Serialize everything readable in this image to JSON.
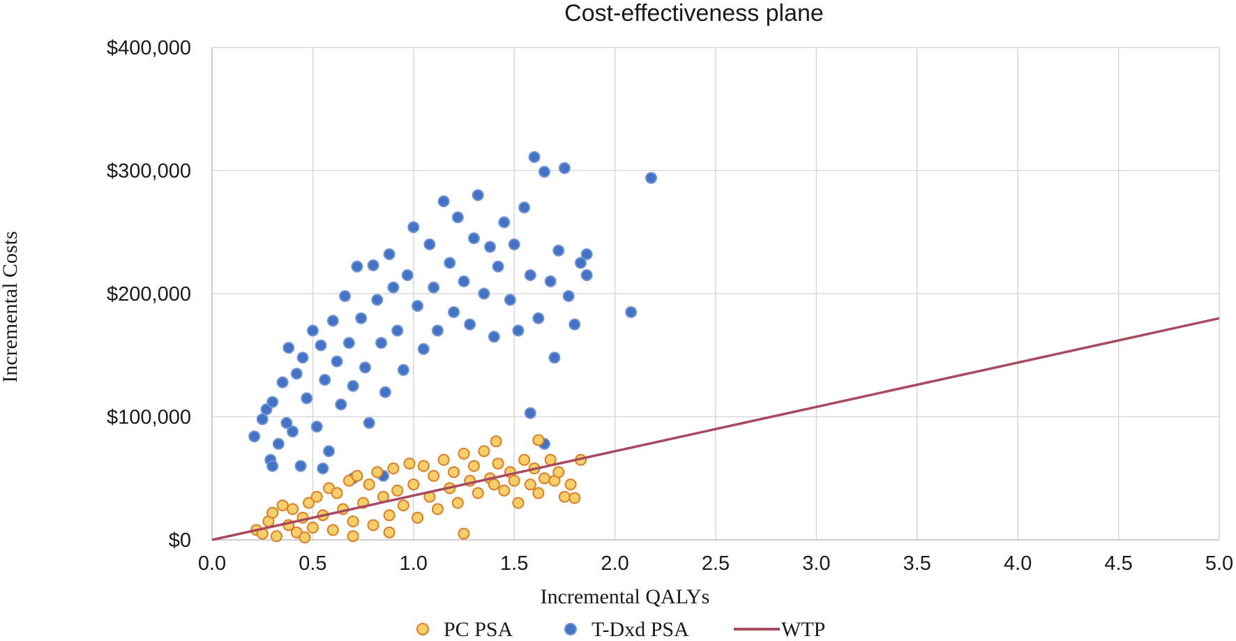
{
  "chart_data": {
    "type": "scatter",
    "title": "Cost-effectiveness plane",
    "xlabel": "Incremental QALYs",
    "ylabel": "Incremental Costs",
    "xlim": [
      0,
      5
    ],
    "ylim": [
      0,
      400000
    ],
    "x_ticks": [
      "0.0",
      "0.5",
      "1.0",
      "1.5",
      "2.0",
      "2.5",
      "3.0",
      "3.5",
      "4.0",
      "4.5",
      "5.0"
    ],
    "y_ticks": [
      "$0",
      "$100,000",
      "$200,000",
      "$300,000",
      "$400,000"
    ],
    "grid": true,
    "legend_position": "bottom-center",
    "series": [
      {
        "name": "PC PSA",
        "kind": "scatter",
        "color": "#f5cf6a",
        "edge_color": "#e07c24",
        "points": [
          [
            0.22,
            8000
          ],
          [
            0.25,
            5000
          ],
          [
            0.28,
            15000
          ],
          [
            0.3,
            22000
          ],
          [
            0.32,
            3000
          ],
          [
            0.35,
            28000
          ],
          [
            0.38,
            12000
          ],
          [
            0.4,
            25000
          ],
          [
            0.42,
            6000
          ],
          [
            0.45,
            18000
          ],
          [
            0.48,
            30000
          ],
          [
            0.5,
            10000
          ],
          [
            0.52,
            35000
          ],
          [
            0.55,
            20000
          ],
          [
            0.58,
            42000
          ],
          [
            0.6,
            8000
          ],
          [
            0.62,
            38000
          ],
          [
            0.65,
            25000
          ],
          [
            0.68,
            48000
          ],
          [
            0.7,
            15000
          ],
          [
            0.72,
            52000
          ],
          [
            0.75,
            30000
          ],
          [
            0.78,
            45000
          ],
          [
            0.8,
            12000
          ],
          [
            0.82,
            55000
          ],
          [
            0.85,
            35000
          ],
          [
            0.88,
            20000
          ],
          [
            0.9,
            58000
          ],
          [
            0.92,
            40000
          ],
          [
            0.95,
            28000
          ],
          [
            0.98,
            62000
          ],
          [
            1.0,
            45000
          ],
          [
            1.02,
            18000
          ],
          [
            1.05,
            60000
          ],
          [
            1.08,
            35000
          ],
          [
            1.1,
            52000
          ],
          [
            1.12,
            25000
          ],
          [
            1.15,
            65000
          ],
          [
            1.18,
            42000
          ],
          [
            1.2,
            55000
          ],
          [
            1.22,
            30000
          ],
          [
            1.25,
            70000
          ],
          [
            1.28,
            48000
          ],
          [
            1.3,
            60000
          ],
          [
            1.32,
            38000
          ],
          [
            1.35,
            72000
          ],
          [
            1.38,
            50000
          ],
          [
            1.4,
            45000
          ],
          [
            1.42,
            62000
          ],
          [
            1.45,
            40000
          ],
          [
            1.48,
            55000
          ],
          [
            1.5,
            48000
          ],
          [
            1.52,
            30000
          ],
          [
            1.55,
            65000
          ],
          [
            1.58,
            45000
          ],
          [
            1.6,
            58000
          ],
          [
            1.62,
            38000
          ],
          [
            1.65,
            50000
          ],
          [
            1.68,
            65000
          ],
          [
            1.7,
            48000
          ],
          [
            1.72,
            55000
          ],
          [
            1.75,
            35000
          ],
          [
            1.78,
            45000
          ],
          [
            1.8,
            34000
          ],
          [
            1.83,
            65000
          ],
          [
            1.62,
            81000
          ],
          [
            1.41,
            80000
          ],
          [
            0.88,
            6000
          ],
          [
            0.7,
            3000
          ],
          [
            0.46,
            2000
          ],
          [
            1.25,
            5000
          ]
        ]
      },
      {
        "name": "T-Dxd PSA",
        "kind": "scatter",
        "color": "#4472c4",
        "edge_color": "#6f95d8",
        "points": [
          [
            0.21,
            84000
          ],
          [
            0.25,
            98000
          ],
          [
            0.27,
            106000
          ],
          [
            0.29,
            65000
          ],
          [
            0.3,
            112000
          ],
          [
            0.33,
            78000
          ],
          [
            0.35,
            128000
          ],
          [
            0.37,
            95000
          ],
          [
            0.38,
            156000
          ],
          [
            0.4,
            88000
          ],
          [
            0.42,
            135000
          ],
          [
            0.44,
            60000
          ],
          [
            0.45,
            148000
          ],
          [
            0.47,
            115000
          ],
          [
            0.5,
            170000
          ],
          [
            0.52,
            92000
          ],
          [
            0.54,
            158000
          ],
          [
            0.56,
            130000
          ],
          [
            0.58,
            72000
          ],
          [
            0.6,
            178000
          ],
          [
            0.62,
            145000
          ],
          [
            0.64,
            110000
          ],
          [
            0.66,
            198000
          ],
          [
            0.68,
            160000
          ],
          [
            0.7,
            125000
          ],
          [
            0.72,
            222000
          ],
          [
            0.74,
            180000
          ],
          [
            0.76,
            140000
          ],
          [
            0.78,
            95000
          ],
          [
            0.8,
            223000
          ],
          [
            0.82,
            195000
          ],
          [
            0.84,
            160000
          ],
          [
            0.86,
            120000
          ],
          [
            0.88,
            232000
          ],
          [
            0.9,
            205000
          ],
          [
            0.92,
            170000
          ],
          [
            0.95,
            138000
          ],
          [
            0.97,
            215000
          ],
          [
            1.0,
            254000
          ],
          [
            1.02,
            190000
          ],
          [
            1.05,
            155000
          ],
          [
            1.08,
            240000
          ],
          [
            1.1,
            205000
          ],
          [
            1.12,
            170000
          ],
          [
            1.15,
            275000
          ],
          [
            1.18,
            225000
          ],
          [
            1.2,
            185000
          ],
          [
            1.22,
            262000
          ],
          [
            1.25,
            210000
          ],
          [
            1.28,
            175000
          ],
          [
            1.3,
            245000
          ],
          [
            1.32,
            280000
          ],
          [
            1.35,
            200000
          ],
          [
            1.38,
            238000
          ],
          [
            1.4,
            165000
          ],
          [
            1.42,
            222000
          ],
          [
            1.45,
            258000
          ],
          [
            1.48,
            195000
          ],
          [
            1.5,
            240000
          ],
          [
            1.52,
            170000
          ],
          [
            1.55,
            270000
          ],
          [
            1.58,
            215000
          ],
          [
            1.6,
            311000
          ],
          [
            1.62,
            180000
          ],
          [
            1.65,
            299000
          ],
          [
            1.68,
            210000
          ],
          [
            1.7,
            148000
          ],
          [
            1.72,
            235000
          ],
          [
            1.75,
            302000
          ],
          [
            1.77,
            198000
          ],
          [
            1.8,
            175000
          ],
          [
            1.83,
            225000
          ],
          [
            1.86,
            215000
          ],
          [
            1.86,
            232000
          ],
          [
            2.08,
            185000
          ],
          [
            2.18,
            294000
          ],
          [
            1.65,
            78000
          ],
          [
            1.58,
            103000
          ],
          [
            0.55,
            58000
          ],
          [
            0.7,
            50000
          ],
          [
            0.85,
            52000
          ],
          [
            0.3,
            60000
          ]
        ]
      },
      {
        "name": "WTP",
        "kind": "line",
        "color": "#a8495f",
        "x": [
          0,
          5
        ],
        "y": [
          0,
          180000
        ]
      }
    ]
  }
}
